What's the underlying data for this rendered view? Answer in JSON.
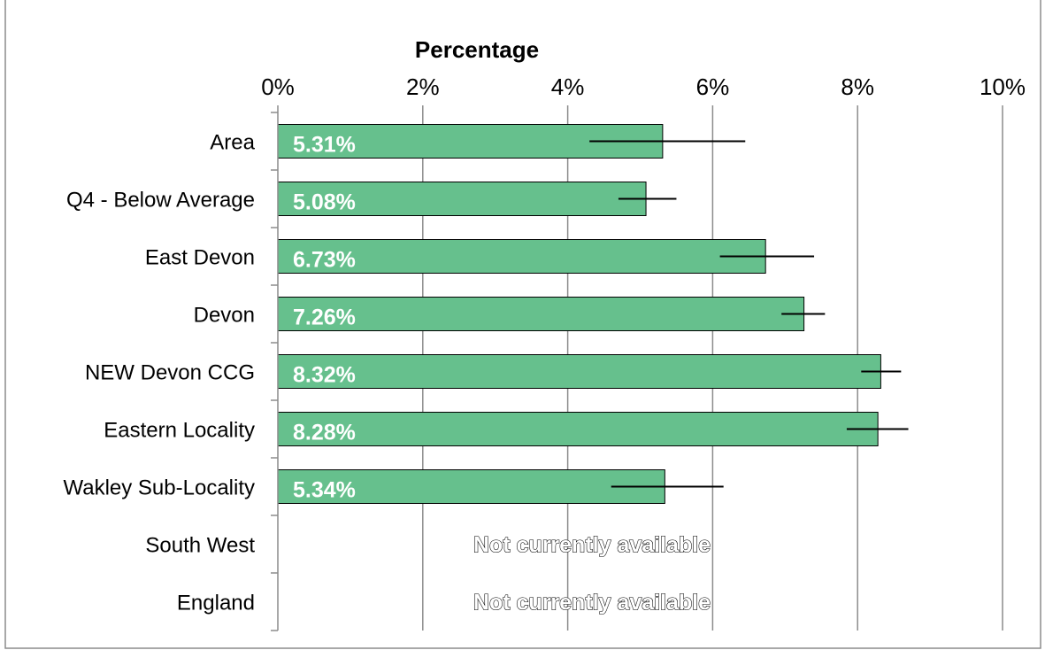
{
  "chart_data": {
    "type": "bar",
    "orientation": "horizontal",
    "title": "",
    "xlabel": "Percentage",
    "ylabel": "",
    "xlim": [
      0,
      10
    ],
    "x_ticks": [
      0,
      2,
      4,
      6,
      8,
      10
    ],
    "x_tick_labels": [
      "0%",
      "2%",
      "4%",
      "6%",
      "8%",
      "10%"
    ],
    "x_axis_position": "top",
    "grid": true,
    "legend": "none",
    "categories": [
      "Area",
      "Q4 - Below Average",
      "East Devon",
      "Devon",
      "NEW Devon CCG",
      "Eastern Locality",
      "Wakley Sub-Locality",
      "South West",
      "England"
    ],
    "values": [
      5.31,
      5.08,
      6.73,
      7.26,
      8.32,
      8.28,
      5.34,
      null,
      null
    ],
    "data_labels": [
      "5.31%",
      "5.08%",
      "6.73%",
      "7.26%",
      "8.32%",
      "8.28%",
      "5.34%",
      "Not currently available",
      "Not currently available"
    ],
    "error_low": [
      4.3,
      4.7,
      6.1,
      6.95,
      8.05,
      7.85,
      4.6,
      null,
      null
    ],
    "error_high": [
      6.45,
      5.5,
      7.4,
      7.55,
      8.6,
      8.7,
      6.15,
      null,
      null
    ],
    "bar_color": "#66c08d"
  }
}
